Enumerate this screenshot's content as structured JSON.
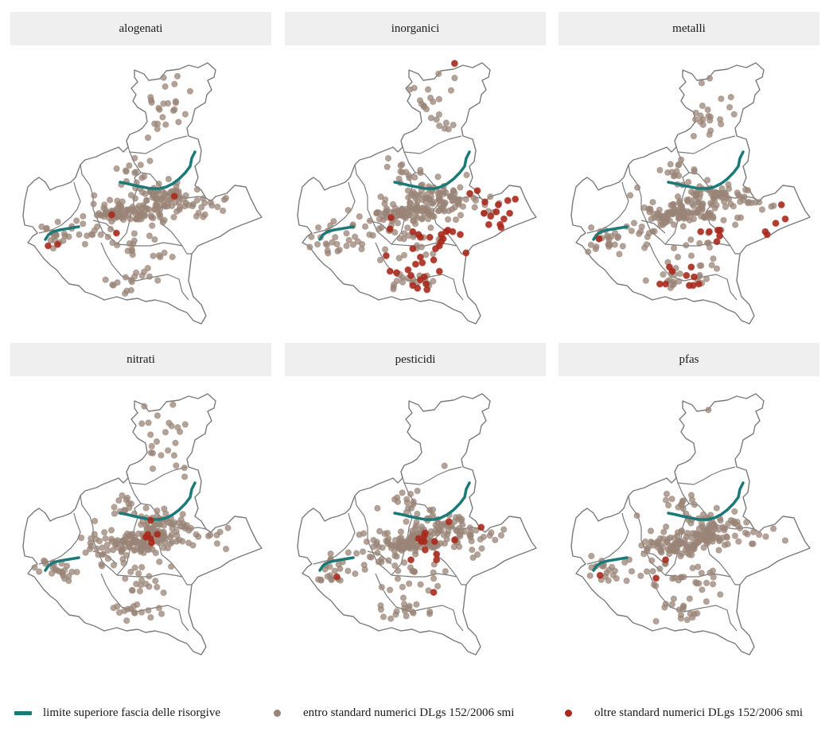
{
  "panels": [
    {
      "title": "alogenati"
    },
    {
      "title": "inorganici"
    },
    {
      "title": "metalli"
    },
    {
      "title": "nitrati"
    },
    {
      "title": "pesticidi"
    },
    {
      "title": "pfas"
    }
  ],
  "legend": {
    "line_label": "limite superiore fascia delle risorgive",
    "within_label": "entro standard numerici DLgs 152/2006 smi",
    "beyond_label": "oltre standard numerici DLgs 152/2006 smi"
  },
  "colors": {
    "risorgive_line": "#1b7a77",
    "within": "#9a8477",
    "beyond": "#a8291c",
    "outline": "#7a7a7a",
    "strip": "#efefef"
  },
  "icons": {
    "line_key": "teal-line-icon",
    "within_key": "grey-dot-icon",
    "beyond_key": "red-dot-icon"
  },
  "chart_data": {
    "type": "map",
    "facets": [
      "alogenati",
      "inorganici",
      "metalli",
      "nitrati",
      "pesticidi",
      "pfas"
    ],
    "coordinate_system": "lon/lat (approx., WGS84)",
    "lon_range": [
      10.62,
      13.1
    ],
    "lat_range": [
      44.79,
      46.68
    ],
    "exceedances": {
      "alogenati": [
        [
          11.52,
          45.55
        ],
        [
          11.57,
          45.42
        ],
        [
          12.18,
          45.68
        ],
        [
          10.85,
          45.33
        ],
        [
          10.95,
          45.34
        ]
      ],
      "inorganici": [
        [
          12.24,
          46.62
        ],
        [
          11.57,
          45.53
        ],
        [
          11.56,
          45.45
        ],
        [
          12.4,
          45.7
        ],
        [
          12.48,
          45.72
        ],
        [
          12.56,
          45.64
        ],
        [
          12.7,
          45.62
        ],
        [
          12.8,
          45.65
        ],
        [
          12.88,
          45.66
        ],
        [
          12.55,
          45.56
        ],
        [
          12.62,
          45.54
        ],
        [
          12.68,
          45.57
        ],
        [
          12.76,
          45.52
        ],
        [
          12.82,
          45.56
        ],
        [
          12.6,
          45.48
        ],
        [
          12.72,
          45.48
        ],
        [
          12.73,
          45.46
        ],
        [
          11.8,
          45.43
        ],
        [
          11.86,
          45.41
        ],
        [
          11.88,
          45.39
        ],
        [
          11.98,
          45.39
        ],
        [
          12.1,
          45.41
        ],
        [
          12.12,
          45.38
        ],
        [
          12.1,
          45.36
        ],
        [
          12.08,
          45.33
        ],
        [
          12.15,
          45.43
        ],
        [
          12.17,
          45.44
        ],
        [
          12.22,
          45.43
        ],
        [
          12.04,
          45.31
        ],
        [
          12.3,
          45.41
        ],
        [
          12.36,
          45.28
        ],
        [
          11.8,
          45.31
        ],
        [
          11.88,
          45.25
        ],
        [
          11.9,
          45.21
        ],
        [
          12.08,
          45.15
        ],
        [
          12.02,
          45.23
        ],
        [
          11.83,
          45.2
        ],
        [
          11.52,
          45.26
        ],
        [
          11.56,
          45.15
        ],
        [
          11.63,
          45.14
        ],
        [
          11.75,
          45.16
        ],
        [
          11.78,
          45.12
        ],
        [
          11.92,
          45.11
        ],
        [
          11.88,
          45.09
        ],
        [
          11.94,
          45.06
        ],
        [
          11.85,
          45.03
        ],
        [
          11.95,
          45.02
        ],
        [
          11.8,
          45.05
        ]
      ],
      "metalli": [
        [
          12.8,
          45.62
        ],
        [
          12.74,
          45.49
        ],
        [
          12.84,
          45.52
        ],
        [
          12.63,
          45.43
        ],
        [
          12.65,
          45.41
        ],
        [
          11.95,
          45.43
        ],
        [
          12.04,
          45.43
        ],
        [
          12.13,
          45.44
        ],
        [
          12.15,
          45.44
        ],
        [
          12.15,
          45.4
        ],
        [
          12.12,
          45.36
        ],
        [
          10.88,
          45.38
        ],
        [
          11.62,
          45.18
        ],
        [
          11.65,
          45.15
        ],
        [
          11.85,
          45.18
        ],
        [
          11.8,
          45.12
        ],
        [
          11.88,
          45.11
        ],
        [
          11.93,
          45.06
        ],
        [
          11.87,
          45.05
        ],
        [
          11.52,
          45.06
        ],
        [
          11.58,
          45.06
        ],
        [
          11.83,
          45.05
        ]
      ],
      "nitrati": [
        [
          11.93,
          45.73
        ],
        [
          11.9,
          45.63
        ],
        [
          11.93,
          45.6
        ],
        [
          11.88,
          45.61
        ],
        [
          11.94,
          45.57
        ],
        [
          12.0,
          45.63
        ]
      ],
      "pesticidi": [
        [
          12.18,
          45.72
        ],
        [
          11.93,
          45.64
        ],
        [
          11.92,
          45.62
        ],
        [
          11.86,
          45.6
        ],
        [
          11.89,
          45.58
        ],
        [
          11.92,
          45.58
        ],
        [
          12.03,
          45.58
        ],
        [
          11.93,
          45.52
        ],
        [
          12.05,
          45.49
        ],
        [
          12.05,
          45.45
        ],
        [
          11.78,
          45.45
        ],
        [
          12.24,
          45.59
        ],
        [
          12.52,
          45.68
        ],
        [
          11.0,
          45.33
        ],
        [
          12.02,
          45.22
        ]
      ],
      "pfas": [
        [
          11.58,
          45.45
        ],
        [
          10.89,
          45.34
        ],
        [
          11.48,
          45.32
        ]
      ]
    },
    "exceedance_counts": {
      "alogenati": 5,
      "inorganici": 48,
      "metalli": 22,
      "nitrati": 6,
      "pesticidi": 15,
      "pfas": 3
    },
    "legend_position": "bottom"
  }
}
